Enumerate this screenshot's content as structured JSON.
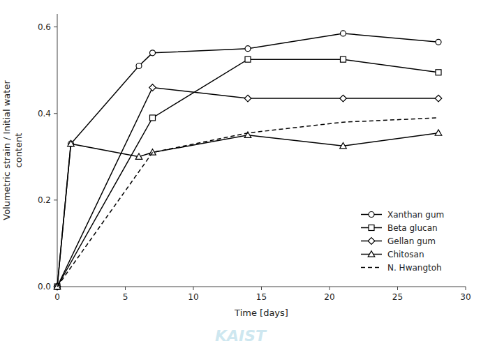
{
  "chart_data": {
    "type": "line",
    "xlabel": "Time [days]",
    "ylabel": "Volumetric strain / Initial water\ncontent",
    "annotations": [
      "KAIST"
    ],
    "series": [
      {
        "name": "Xanthan gum",
        "color": "#000000",
        "marker": "circle",
        "line_style": "solid",
        "x": [
          0,
          1,
          6,
          7,
          14,
          21,
          28
        ],
        "values": [
          0.0,
          0.33,
          0.51,
          0.54,
          0.55,
          0.585,
          0.565
        ]
      },
      {
        "name": "Beta glucan",
        "color": "#000000",
        "marker": "square",
        "line_style": "solid",
        "x": [
          0,
          7,
          14,
          21,
          28
        ],
        "values": [
          0.0,
          0.39,
          0.525,
          0.525,
          0.495
        ]
      },
      {
        "name": "Gellan gum",
        "color": "#000000",
        "marker": "diamond",
        "line_style": "solid",
        "x": [
          0,
          7,
          14,
          21,
          28
        ],
        "values": [
          0.0,
          0.46,
          0.435,
          0.435,
          0.435
        ]
      },
      {
        "name": "Chitosan",
        "color": "#000000",
        "marker": "triangle",
        "line_style": "solid",
        "x": [
          0,
          1,
          6,
          7,
          14,
          21,
          28
        ],
        "values": [
          0.0,
          0.33,
          0.3,
          0.31,
          0.35,
          0.325,
          0.355
        ]
      },
      {
        "name": "N. Hwangtoh",
        "color": "#000000",
        "marker": "none",
        "line_style": "dashed",
        "x": [
          0,
          7,
          14,
          21,
          28
        ],
        "values": [
          0.0,
          0.31,
          0.355,
          0.38,
          0.39
        ]
      }
    ],
    "xlim": [
      0,
      30
    ],
    "ylim": [
      0.0,
      0.63
    ],
    "xticks": [
      0,
      5,
      10,
      15,
      20,
      25,
      30
    ],
    "yticks": [
      {
        "value": 0,
        "label": "0.0"
      },
      0.2,
      0.4,
      0.6
    ],
    "grid": false,
    "legend": "lower right"
  }
}
